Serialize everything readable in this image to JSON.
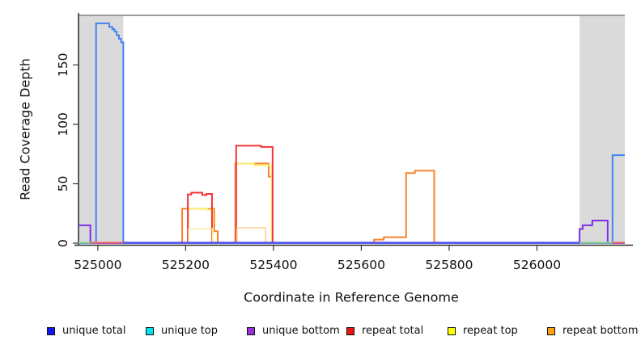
{
  "figure": {
    "x_axis": {
      "label": "Coordinate in Reference Genome",
      "ticks": [
        525000,
        525200,
        525400,
        525600,
        525800,
        526000
      ]
    },
    "y_axis": {
      "label": "Read Coverage Depth",
      "ticks": [
        0,
        50,
        100,
        150
      ]
    }
  },
  "chart_data": {
    "type": "line",
    "subtype": "step-coverage",
    "title": "",
    "xlabel": "Coordinate in Reference Genome",
    "ylabel": "Read Coverage Depth",
    "x_range": [
      524956,
      526200
    ],
    "y_range": [
      0,
      191
    ],
    "grid": false,
    "shaded_region_color": "#dadada",
    "shaded_regions": [
      {
        "x1": 524956,
        "x2": 525058
      },
      {
        "x1": 526097,
        "x2": 526200
      }
    ],
    "series": [
      {
        "name": "unique top",
        "color": "#22d3e6",
        "width": 2,
        "points": [
          [
            524956,
            0
          ]
        ]
      },
      {
        "name": "repeat bottom",
        "color": "#f9832a",
        "width": 2,
        "points": [
          [
            525192,
            29
          ],
          [
            525265,
            10
          ],
          [
            525273,
            0
          ],
          [
            525313,
            67
          ],
          [
            525389,
            56
          ],
          [
            525397,
            0
          ],
          [
            525629,
            3
          ],
          [
            525651,
            5
          ],
          [
            525702,
            59
          ],
          [
            525722,
            61
          ],
          [
            525766,
            0
          ]
        ]
      },
      {
        "name": "repeat top",
        "color": "#fbf272",
        "width": 2,
        "points": [
          [
            525206,
            29
          ],
          [
            525249,
            28
          ],
          [
            525262,
            0
          ],
          [
            525315,
            67
          ],
          [
            525355,
            65.5
          ],
          [
            525396,
            0
          ]
        ]
      },
      {
        "name": "repeat total",
        "color": "#f23535",
        "width": 2,
        "points": [
          [
            525205,
            41
          ],
          [
            525213,
            42.5
          ],
          [
            525238,
            40.5
          ],
          [
            525247,
            41.5
          ],
          [
            525260,
            0
          ],
          [
            525315,
            82
          ],
          [
            525372,
            81
          ],
          [
            525398,
            0
          ]
        ]
      },
      {
        "name": "repeat top light",
        "color": "#fcf0a8",
        "width": 1.6,
        "points": [
          [
            525207,
            12
          ],
          [
            525261,
            0
          ]
        ]
      },
      {
        "name": "repeat bottom light",
        "color": "#fcd49c",
        "width": 1.6,
        "points": [
          [
            525317,
            13
          ],
          [
            525382,
            0
          ]
        ]
      },
      {
        "name": "unique bottom",
        "color": "#7c2ee8",
        "width": 2,
        "points": [
          [
            524956,
            15
          ],
          [
            524983,
            0
          ],
          [
            526097,
            12
          ],
          [
            526104,
            15
          ],
          [
            526126,
            19
          ],
          [
            526161,
            0
          ]
        ]
      },
      {
        "name": "unique total",
        "color": "#4184f4",
        "width": 2,
        "points": [
          [
            524996,
            185
          ],
          [
            525026,
            182
          ],
          [
            525033,
            180
          ],
          [
            525038,
            178
          ],
          [
            525043,
            175
          ],
          [
            525048,
            172
          ],
          [
            525053,
            169
          ],
          [
            525058,
            0
          ],
          [
            526172,
            74
          ]
        ]
      }
    ],
    "baseline_segments": [
      {
        "x1": 524956,
        "x2": 524983,
        "color": "#8ed08e"
      },
      {
        "x1": 524983,
        "x2": 525058,
        "color": "#ee6b6b"
      },
      {
        "x1": 525058,
        "x2": 526097,
        "color": "#5c4cf0"
      },
      {
        "x1": 526097,
        "x2": 526172,
        "color": "#8ed08e"
      },
      {
        "x1": 526172,
        "x2": 526200,
        "color": "#ee6b6b"
      }
    ],
    "legend_position": "bottom",
    "legend": [
      {
        "label": "unique total",
        "color": "#1414ee"
      },
      {
        "label": "unique top",
        "color": "#00e0ee"
      },
      {
        "label": "unique bottom",
        "color": "#9b30db"
      },
      {
        "label": "repeat total",
        "color": "#ee1111"
      },
      {
        "label": "repeat top",
        "color": "#ffff00"
      },
      {
        "label": "repeat bottom",
        "color": "#ffa018"
      }
    ]
  }
}
